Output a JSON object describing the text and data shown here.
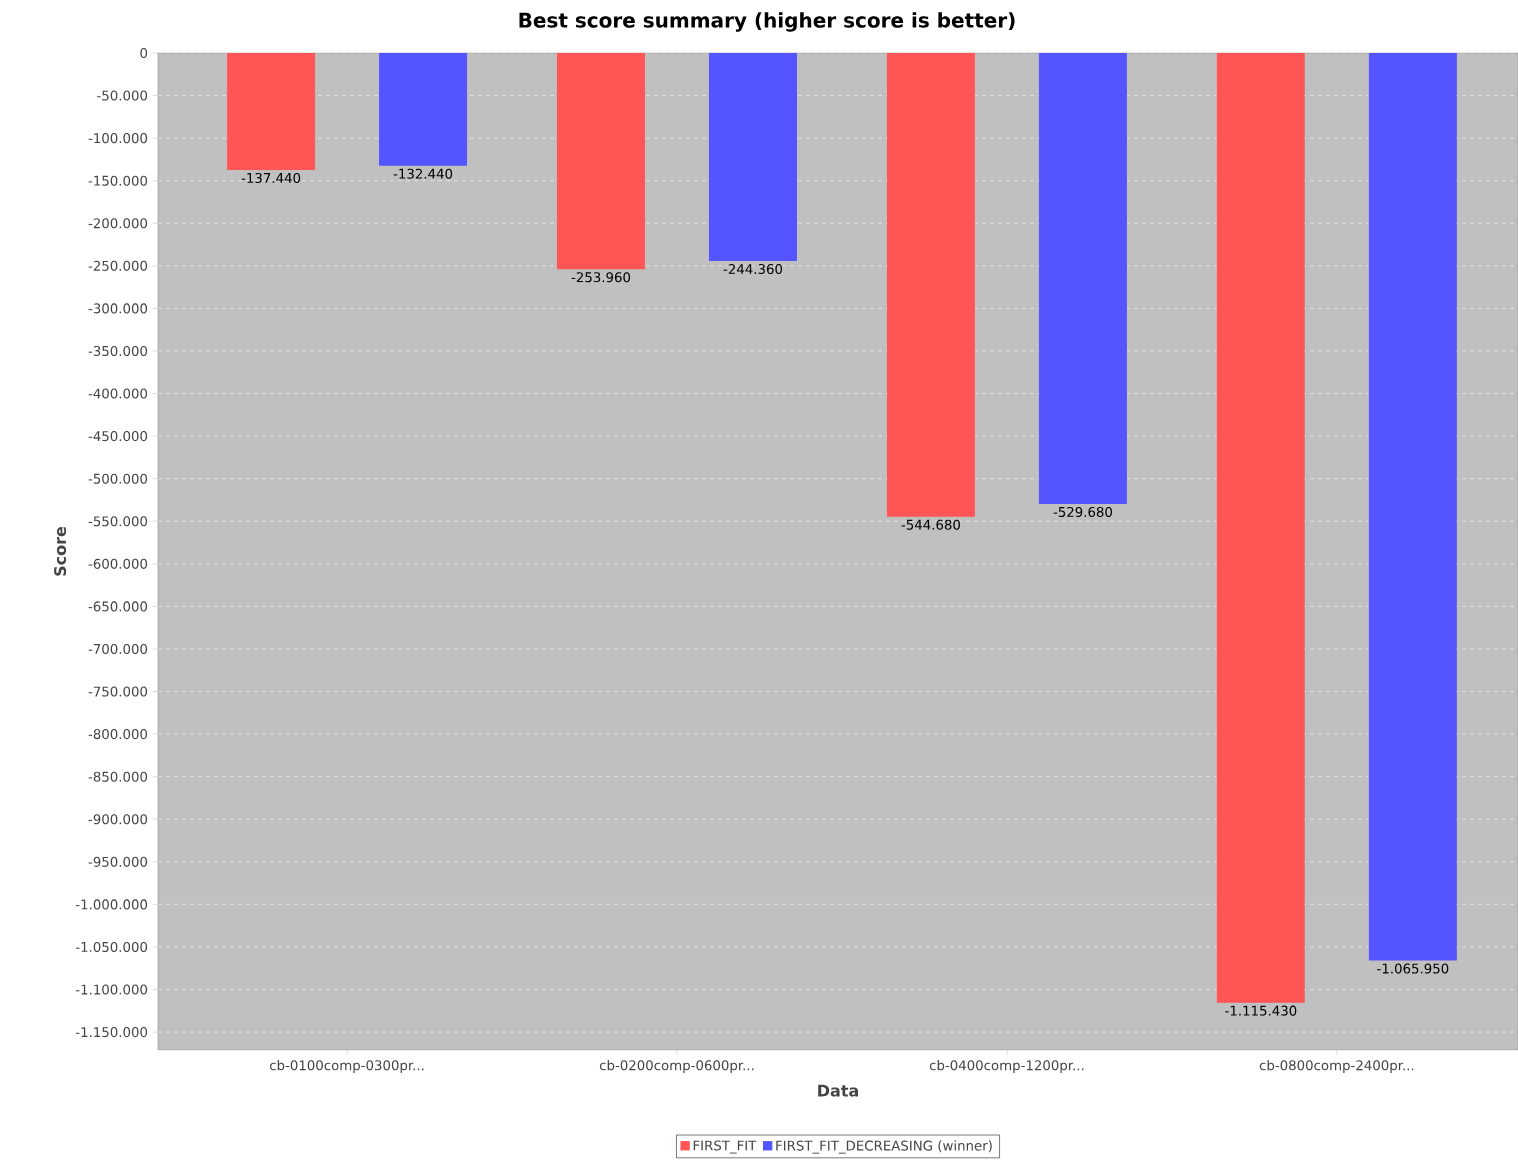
{
  "chart_data": {
    "type": "bar",
    "title": "Best score summary (higher score is better)",
    "xlabel": "Data",
    "ylabel": "Score",
    "categories": [
      "cb-0100comp-0300pr...",
      "cb-0200comp-0600pr...",
      "cb-0400comp-1200pr...",
      "cb-0800comp-2400pr..."
    ],
    "series": [
      {
        "name": "FIRST_FIT",
        "color": "#ff5555",
        "values": [
          -137440,
          -253960,
          -544680,
          -1115430
        ],
        "value_labels": [
          "-137.440",
          "-253.960",
          "-544.680",
          "-1.115.430"
        ]
      },
      {
        "name": "FIRST_FIT_DECREASING (winner)",
        "color": "#5555ff",
        "values": [
          -132440,
          -244360,
          -529680,
          -1065950
        ],
        "value_labels": [
          "-132.440",
          "-244.360",
          "-529.680",
          "-1.065.950"
        ]
      }
    ],
    "ylim": [
      -1171000,
      0
    ],
    "yticks": [
      0,
      {
        "value": -50000,
        "label": "-50.000"
      },
      {
        "value": -100000,
        "label": "-100.000"
      },
      {
        "value": -150000,
        "label": "-150.000"
      },
      {
        "value": -200000,
        "label": "-200.000"
      },
      {
        "value": -250000,
        "label": "-250.000"
      },
      {
        "value": -300000,
        "label": "-300.000"
      },
      {
        "value": -350000,
        "label": "-350.000"
      },
      {
        "value": -400000,
        "label": "-400.000"
      },
      {
        "value": -450000,
        "label": "-450.000"
      },
      {
        "value": -500000,
        "label": "-500.000"
      },
      {
        "value": -550000,
        "label": "-550.000"
      },
      {
        "value": -600000,
        "label": "-600.000"
      },
      {
        "value": -650000,
        "label": "-650.000"
      },
      {
        "value": -700000,
        "label": "-700.000"
      },
      {
        "value": -750000,
        "label": "-750.000"
      },
      {
        "value": -800000,
        "label": "-800.000"
      },
      {
        "value": -850000,
        "label": "-850.000"
      },
      {
        "value": -900000,
        "label": "-900.000"
      },
      {
        "value": -950000,
        "label": "-950.000"
      },
      {
        "value": -1000000,
        "label": "-1.000.000"
      },
      {
        "value": -1050000,
        "label": "-1.050.000"
      },
      {
        "value": -1100000,
        "label": "-1.100.000"
      },
      {
        "value": -1150000,
        "label": "-1.150.000"
      }
    ],
    "grid": "y",
    "legend": "bottom"
  }
}
